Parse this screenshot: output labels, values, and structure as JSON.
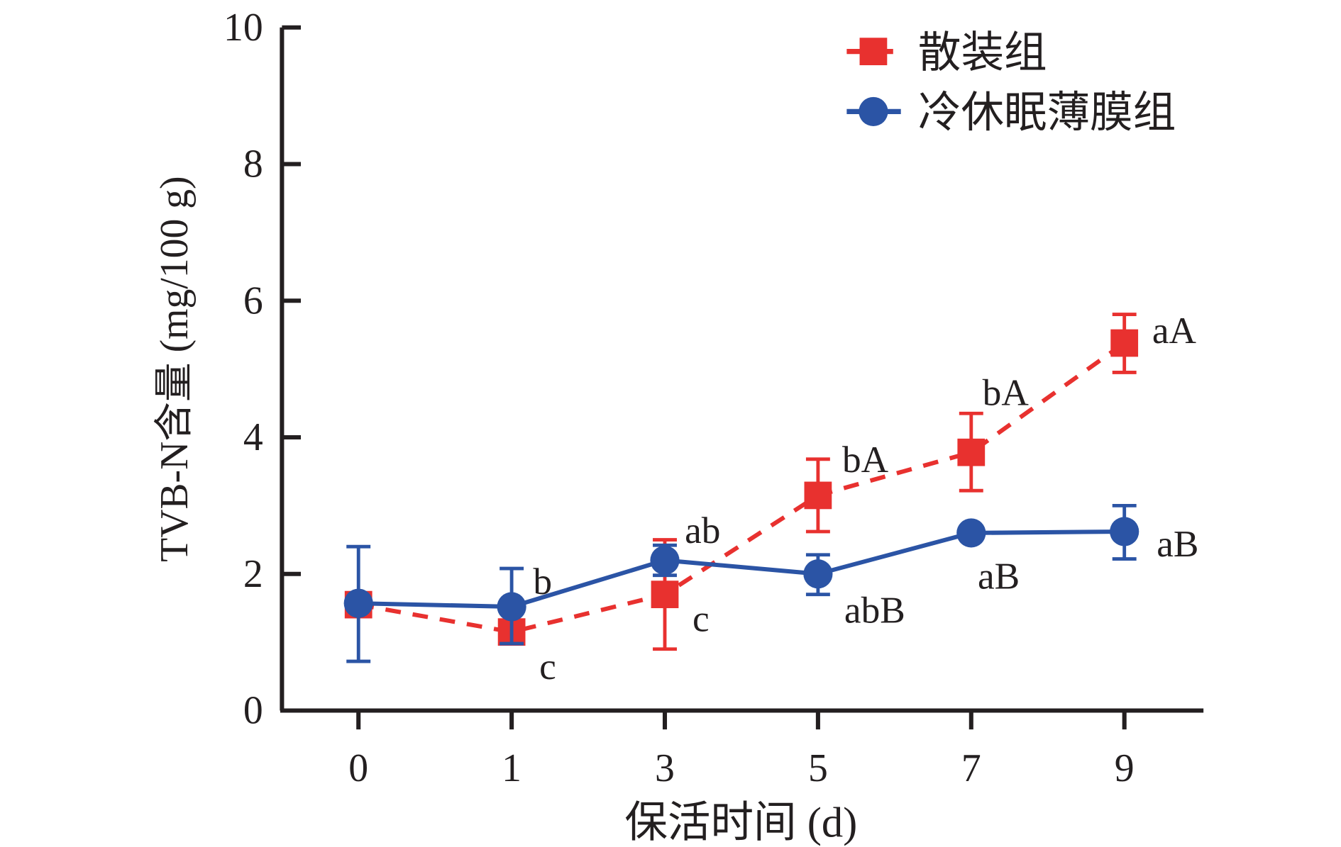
{
  "chart_data": {
    "type": "line",
    "title": "",
    "xlabel": "保活时间 (d)",
    "ylabel": "TVB-N含量 (mg/100 g)",
    "categories": [
      "0",
      "1",
      "3",
      "5",
      "7",
      "9"
    ],
    "ylim": [
      0,
      10
    ],
    "yticks": [
      "0",
      "2",
      "4",
      "6",
      "8",
      "10"
    ],
    "legend_position": "top-right",
    "series": [
      {
        "name": "散装组",
        "color": "#e8312f",
        "line": "dashed",
        "marker": "square",
        "values": [
          1.55,
          1.15,
          1.7,
          3.15,
          3.78,
          5.38
        ],
        "error_low": [
          1.4,
          0.98,
          0.9,
          2.62,
          3.22,
          4.95
        ],
        "error_high": [
          1.7,
          1.3,
          2.5,
          3.68,
          4.35,
          5.8
        ],
        "labels": [
          "",
          "c",
          "c",
          "bA",
          "bA",
          "aA"
        ]
      },
      {
        "name": "冷休眠薄膜组",
        "color": "#2b54a5",
        "line": "solid",
        "marker": "circle",
        "values": [
          1.57,
          1.52,
          2.2,
          2.0,
          2.6,
          2.62
        ],
        "error_low": [
          0.72,
          0.98,
          1.98,
          1.7,
          2.6,
          2.22
        ],
        "error_high": [
          2.4,
          2.08,
          2.42,
          2.28,
          2.6,
          3.0
        ],
        "labels": [
          "",
          "b",
          "ab",
          "abB",
          "aB",
          "aB"
        ]
      }
    ]
  }
}
